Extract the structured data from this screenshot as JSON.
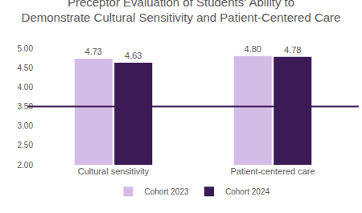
{
  "chart_data": {
    "type": "bar",
    "title": "Preceptor Evaluation of Students' Ability to\nDemonstrate Cultural Sensitivity and Patient-Centered Care",
    "categories": [
      "Cultural sensitivity",
      "Patient-centered care"
    ],
    "series": [
      {
        "name": "Cohort 2023",
        "color": "#d3bce6",
        "values": [
          4.73,
          4.8
        ],
        "value_labels": [
          "4.73",
          "4.80"
        ]
      },
      {
        "name": "Cohort 2024",
        "color": "#3c1a55",
        "values": [
          4.63,
          4.78
        ],
        "value_labels": [
          "4.63",
          "4.78"
        ]
      }
    ],
    "reference_line": 3.5,
    "ylim": [
      2,
      5
    ],
    "yticks": [
      {
        "value": 2,
        "label": "2.00"
      },
      {
        "value": 2.5,
        "label": "2.50"
      },
      {
        "value": 3,
        "label": "3.00"
      },
      {
        "value": 3.5,
        "label": "3.50"
      },
      {
        "value": 4,
        "label": "4.00"
      },
      {
        "value": 4.5,
        "label": "4.50"
      },
      {
        "value": 5,
        "label": "5.00"
      }
    ],
    "grid": false,
    "legend": "bottom",
    "data_labels": true
  }
}
